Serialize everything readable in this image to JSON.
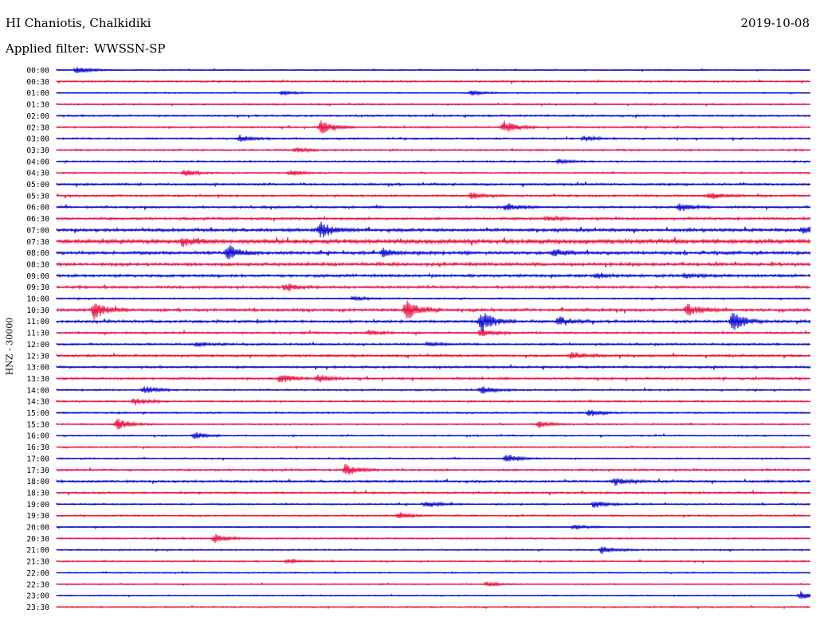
{
  "header": {
    "station_title": "HI Chaniotis, Chalkidiki",
    "date": "2019-10-08",
    "filter_label": "Applied filter:",
    "filter_value": "WWSSN-SP"
  },
  "channel_label": "HNZ - 30000",
  "colors": {
    "blue_trace": "#1010d0",
    "red_trace": "#e8184a",
    "text": "#000000",
    "background": "#ffffff"
  },
  "chart_data": {
    "type": "line",
    "title": "HI Chaniotis, Chalkidiki",
    "ylabel": "HNZ - 30000",
    "xlabel": "",
    "grid": false,
    "legend": "none",
    "x_minutes_per_line": 30,
    "row_labels": [
      "00:00",
      "00:30",
      "01:00",
      "01:30",
      "02:00",
      "02:30",
      "03:00",
      "03:30",
      "04:00",
      "04:30",
      "05:00",
      "05:30",
      "06:00",
      "06:30",
      "07:00",
      "07:30",
      "08:00",
      "08:30",
      "09:00",
      "09:30",
      "10:00",
      "10:30",
      "11:00",
      "11:30",
      "12:00",
      "12:30",
      "13:00",
      "13:30",
      "14:00",
      "14:30",
      "15:00",
      "15:30",
      "16:00",
      "16:30",
      "17:00",
      "17:30",
      "18:00",
      "18:30",
      "19:00",
      "19:30",
      "20:00",
      "20:30",
      "21:00",
      "21:30",
      "22:00",
      "22:30",
      "23:00",
      "23:30"
    ],
    "row_colors": [
      "blue",
      "red",
      "blue",
      "red",
      "blue",
      "red",
      "blue",
      "red",
      "blue",
      "red",
      "blue",
      "red",
      "blue",
      "red",
      "blue",
      "red",
      "blue",
      "red",
      "blue",
      "red",
      "blue",
      "red",
      "blue",
      "red",
      "blue",
      "red",
      "blue",
      "red",
      "blue",
      "red",
      "blue",
      "red",
      "blue",
      "red",
      "blue",
      "red",
      "blue",
      "red",
      "blue",
      "red",
      "blue",
      "red",
      "blue",
      "red",
      "blue",
      "red",
      "blue",
      "red"
    ],
    "noise_level": [
      0.6,
      0.9,
      0.6,
      0.8,
      0.9,
      0.9,
      0.9,
      0.9,
      0.8,
      0.8,
      1.0,
      1.0,
      1.1,
      1.2,
      1.6,
      2.2,
      1.6,
      1.6,
      1.4,
      1.3,
      0.8,
      1.4,
      1.3,
      1.0,
      1.0,
      1.2,
      1.1,
      1.1,
      0.9,
      0.9,
      0.8,
      0.8,
      0.7,
      0.7,
      0.7,
      1.0,
      1.1,
      1.0,
      0.8,
      0.8,
      0.7,
      0.8,
      0.8,
      0.7,
      0.6,
      0.6,
      0.6,
      0.7
    ],
    "events": [
      {
        "row": "00:00",
        "minute": 0.8,
        "amplitude": 5
      },
      {
        "row": "01:00",
        "minute": 9.0,
        "amplitude": 3
      },
      {
        "row": "01:00",
        "minute": 16.5,
        "amplitude": 3
      },
      {
        "row": "02:30",
        "minute": 10.5,
        "amplitude": 9
      },
      {
        "row": "02:30",
        "minute": 17.8,
        "amplitude": 8
      },
      {
        "row": "03:00",
        "minute": 7.3,
        "amplitude": 4
      },
      {
        "row": "03:00",
        "minute": 21.0,
        "amplitude": 3
      },
      {
        "row": "03:30",
        "minute": 9.5,
        "amplitude": 3
      },
      {
        "row": "04:00",
        "minute": 20.0,
        "amplitude": 3
      },
      {
        "row": "04:30",
        "minute": 5.1,
        "amplitude": 4
      },
      {
        "row": "04:30",
        "minute": 9.3,
        "amplitude": 4
      },
      {
        "row": "05:30",
        "minute": 16.5,
        "amplitude": 4
      },
      {
        "row": "05:30",
        "minute": 26.0,
        "amplitude": 5
      },
      {
        "row": "06:00",
        "minute": 17.9,
        "amplitude": 5
      },
      {
        "row": "06:00",
        "minute": 24.8,
        "amplitude": 5
      },
      {
        "row": "06:30",
        "minute": 19.5,
        "amplitude": 3
      },
      {
        "row": "07:00",
        "minute": 10.5,
        "amplitude": 11
      },
      {
        "row": "07:00",
        "minute": 29.7,
        "amplitude": 5
      },
      {
        "row": "07:30",
        "minute": 5.0,
        "amplitude": 6
      },
      {
        "row": "08:00",
        "minute": 6.8,
        "amplitude": 10
      },
      {
        "row": "08:00",
        "minute": 13.0,
        "amplitude": 5
      },
      {
        "row": "08:00",
        "minute": 19.8,
        "amplitude": 4
      },
      {
        "row": "09:00",
        "minute": 21.5,
        "amplitude": 3
      },
      {
        "row": "09:00",
        "minute": 25.0,
        "amplitude": 3
      },
      {
        "row": "09:30",
        "minute": 9.1,
        "amplitude": 5
      },
      {
        "row": "10:00",
        "minute": 11.8,
        "amplitude": 3
      },
      {
        "row": "10:30",
        "minute": 1.5,
        "amplitude": 11
      },
      {
        "row": "10:30",
        "minute": 13.9,
        "amplitude": 13
      },
      {
        "row": "10:30",
        "minute": 25.1,
        "amplitude": 8
      },
      {
        "row": "11:00",
        "minute": 16.9,
        "amplitude": 14
      },
      {
        "row": "11:00",
        "minute": 20.0,
        "amplitude": 6
      },
      {
        "row": "11:00",
        "minute": 26.9,
        "amplitude": 13
      },
      {
        "row": "11:30",
        "minute": 16.9,
        "amplitude": 5
      },
      {
        "row": "11:30",
        "minute": 12.4,
        "amplitude": 3
      },
      {
        "row": "12:00",
        "minute": 5.6,
        "amplitude": 3
      },
      {
        "row": "12:00",
        "minute": 14.8,
        "amplitude": 3
      },
      {
        "row": "12:30",
        "minute": 20.5,
        "amplitude": 4
      },
      {
        "row": "13:30",
        "minute": 8.9,
        "amplitude": 6
      },
      {
        "row": "13:30",
        "minute": 10.4,
        "amplitude": 5
      },
      {
        "row": "14:00",
        "minute": 3.5,
        "amplitude": 5
      },
      {
        "row": "14:00",
        "minute": 16.9,
        "amplitude": 5
      },
      {
        "row": "14:30",
        "minute": 3.1,
        "amplitude": 5
      },
      {
        "row": "15:00",
        "minute": 21.2,
        "amplitude": 4
      },
      {
        "row": "15:30",
        "minute": 2.4,
        "amplitude": 7
      },
      {
        "row": "15:30",
        "minute": 19.2,
        "amplitude": 4
      },
      {
        "row": "16:00",
        "minute": 5.5,
        "amplitude": 4
      },
      {
        "row": "17:00",
        "minute": 17.9,
        "amplitude": 6
      },
      {
        "row": "17:30",
        "minute": 11.5,
        "amplitude": 7
      },
      {
        "row": "18:00",
        "minute": 22.2,
        "amplitude": 5
      },
      {
        "row": "19:00",
        "minute": 14.7,
        "amplitude": 4
      },
      {
        "row": "19:00",
        "minute": 21.4,
        "amplitude": 5
      },
      {
        "row": "19:30",
        "minute": 13.6,
        "amplitude": 4
      },
      {
        "row": "20:00",
        "minute": 20.6,
        "amplitude": 3
      },
      {
        "row": "20:30",
        "minute": 6.3,
        "amplitude": 6
      },
      {
        "row": "21:00",
        "minute": 21.7,
        "amplitude": 5
      },
      {
        "row": "21:30",
        "minute": 9.2,
        "amplitude": 3
      },
      {
        "row": "22:30",
        "minute": 17.1,
        "amplitude": 3
      },
      {
        "row": "23:00",
        "minute": 29.6,
        "amplitude": 5
      }
    ]
  }
}
